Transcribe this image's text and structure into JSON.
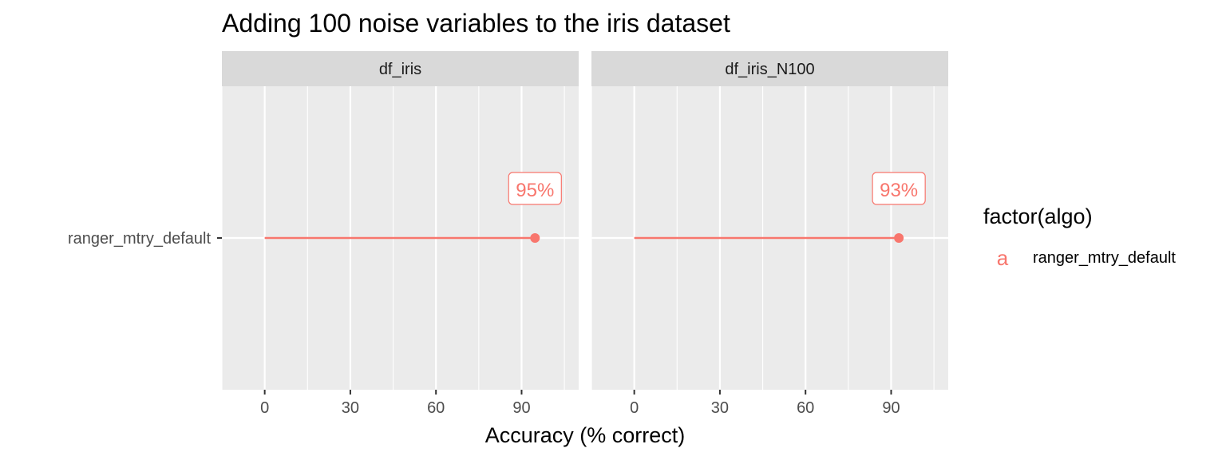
{
  "chart_data": {
    "type": "lollipop",
    "title": "Adding 100 noise variables to the iris dataset",
    "xlabel": "Accuracy (% correct)",
    "ylabel": "",
    "xlim": [
      -15,
      110
    ],
    "x_ticks": [
      0,
      30,
      60,
      90
    ],
    "categories": [
      "ranger_mtry_default"
    ],
    "grid": true,
    "legend": {
      "title": "factor(algo)",
      "placement": "right",
      "key_glyph": "a",
      "entries": [
        "ranger_mtry_default"
      ]
    },
    "series_color": "#F8766D",
    "panels": [
      {
        "name": "df_iris",
        "points": [
          {
            "category": "ranger_mtry_default",
            "x": 94.7,
            "label": "95%"
          }
        ]
      },
      {
        "name": "df_iris_N100",
        "points": [
          {
            "category": "ranger_mtry_default",
            "x": 92.7,
            "label": "93%"
          }
        ]
      }
    ]
  }
}
